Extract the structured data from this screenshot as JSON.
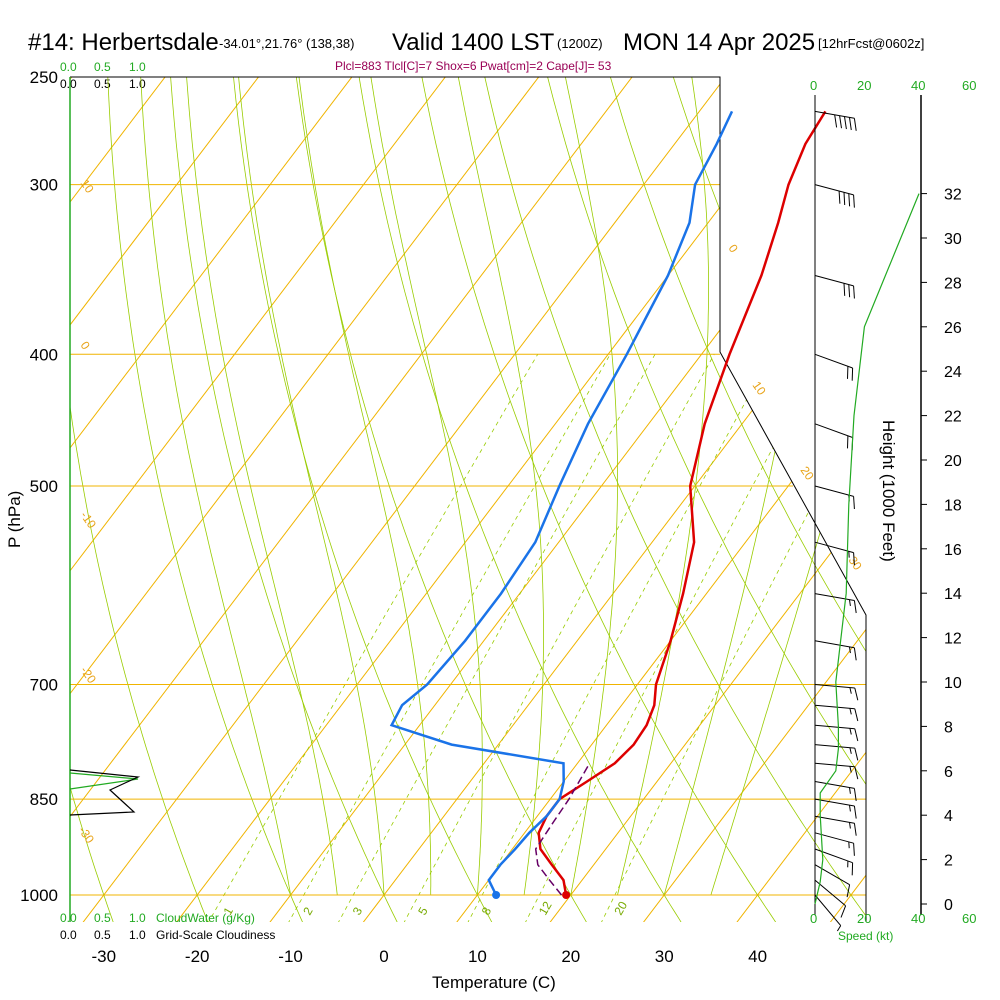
{
  "header": {
    "station": "#14: Herbertsdale",
    "coords": "-34.01°,21.76° (138,38)",
    "valid": "Valid 1400 LST",
    "utc": "(1200Z)",
    "date": "MON 14 Apr 2025",
    "forecast": "[12hrFcst@0602z]"
  },
  "params_line": "Plcl=883 Tlcl[C]=7 Shox=6 Pwat[cm]=2 Cape[J]= 53",
  "colors": {
    "isotherm": "#f0b400",
    "dry_adiabat": "#99cc00",
    "moist_adiabat": "#99cc00",
    "mixing_ratio": "#99cc00",
    "temperature": "#dd0000",
    "dewpoint": "#1a73e8",
    "parcel": "#660066",
    "height_profile": "#22aa22",
    "cloud_green": "#22aa22"
  },
  "labels": {
    "p_axis": "P (hPa)",
    "t_axis": "Temperature (C)",
    "h_axis": "Height (1000 Feet)",
    "cloud_water": "CloudWater (g/Kg)",
    "cloudiness": "Grid-Scale Cloudiness",
    "speed": "Speed (kt)",
    "cloud_ticks": [
      "0.0",
      "0.5",
      "1.0"
    ],
    "speed_ticks_top": [
      "0",
      "20",
      "40",
      "60"
    ],
    "speed_ticks_bottom": [
      "0",
      "20",
      "40",
      "60"
    ]
  },
  "chart_data": {
    "type": "line",
    "title": "#14: Herbertsdale",
    "xlabel": "Temperature (C)",
    "ylabel": "P (hPa)",
    "xlim": [
      -35,
      45
    ],
    "ylim": [
      1000,
      250
    ],
    "y_scale": "log",
    "pressure_ticks": [
      250,
      300,
      400,
      500,
      700,
      850,
      1000
    ],
    "temperature_ticks": [
      -30,
      -20,
      -10,
      0,
      10,
      20,
      30,
      40
    ],
    "height_ticks": [
      0,
      2,
      4,
      6,
      8,
      10,
      12,
      14,
      16,
      18,
      20,
      22,
      24,
      26,
      28,
      30,
      32
    ],
    "isotherm_labels": [
      "10",
      "0",
      "-10",
      "-20",
      "-30",
      "0",
      "10",
      "20",
      "30"
    ],
    "mixing_ratio_labels": [
      "1",
      "2",
      "3",
      "5",
      "8",
      "12",
      "20"
    ],
    "series": [
      {
        "name": "temperature",
        "x": [
          19.5,
          18.0,
          15.5,
          13.0,
          11.5,
          11.0,
          11.0,
          12.5,
          14.0,
          14.5,
          14.3,
          13.5,
          12.0,
          10.0,
          7.5,
          4.5,
          -0.5,
          -4.0,
          -7.0,
          -10.0,
          -12.5,
          -14.5,
          -16.0,
          -16.5,
          -16.5
        ],
        "y": [
          1000,
          975,
          950,
          925,
          900,
          875,
          850,
          825,
          800,
          775,
          750,
          725,
          700,
          650,
          600,
          550,
          500,
          450,
          400,
          350,
          320,
          300,
          280,
          265,
          265
        ]
      },
      {
        "name": "dewpoint",
        "x": [
          12.0,
          10.0,
          10.0,
          10.3,
          10.5,
          11.0,
          11.0,
          10.0,
          8.5,
          -5.0,
          -13.0,
          -13.5,
          -12.5,
          -12.0,
          -12.0,
          -12.5,
          -14.5,
          -16.5,
          -18.0,
          -20.0,
          -22.0,
          -24.5,
          -25.5,
          -26.5,
          -26.5
        ],
        "y": [
          1000,
          975,
          950,
          925,
          900,
          875,
          850,
          825,
          800,
          775,
          750,
          725,
          700,
          650,
          600,
          550,
          500,
          450,
          400,
          350,
          320,
          300,
          280,
          265,
          265
        ]
      },
      {
        "name": "parcel",
        "x": [
          19.0,
          16.5,
          14.0,
          12.5,
          12.2,
          12.0,
          11.3
        ],
        "y": [
          1000,
          975,
          950,
          925,
          883,
          850,
          800
        ]
      },
      {
        "name": "height",
        "x": [
          0,
          2,
          3,
          2,
          2,
          8,
          9,
          9,
          8,
          10,
          12,
          13,
          15,
          19,
          26,
          40
        ],
        "y": [
          0,
          1,
          2,
          4,
          5,
          6,
          7,
          8,
          10,
          12,
          14,
          18,
          22,
          26,
          28,
          32
        ]
      }
    ],
    "wind_barbs": {
      "pressure": [
        1000,
        975,
        950,
        925,
        900,
        875,
        850,
        825,
        800,
        775,
        750,
        725,
        700,
        650,
        600,
        550,
        500,
        450,
        400,
        350,
        300,
        265
      ],
      "speed_kt": [
        5,
        10,
        10,
        15,
        15,
        15,
        15,
        15,
        15,
        15,
        15,
        15,
        15,
        15,
        15,
        15,
        15,
        20,
        20,
        30,
        40,
        50
      ],
      "direction_deg": [
        320,
        310,
        300,
        290,
        285,
        280,
        280,
        280,
        275,
        275,
        275,
        275,
        275,
        280,
        280,
        285,
        285,
        290,
        290,
        285,
        285,
        280
      ]
    }
  }
}
